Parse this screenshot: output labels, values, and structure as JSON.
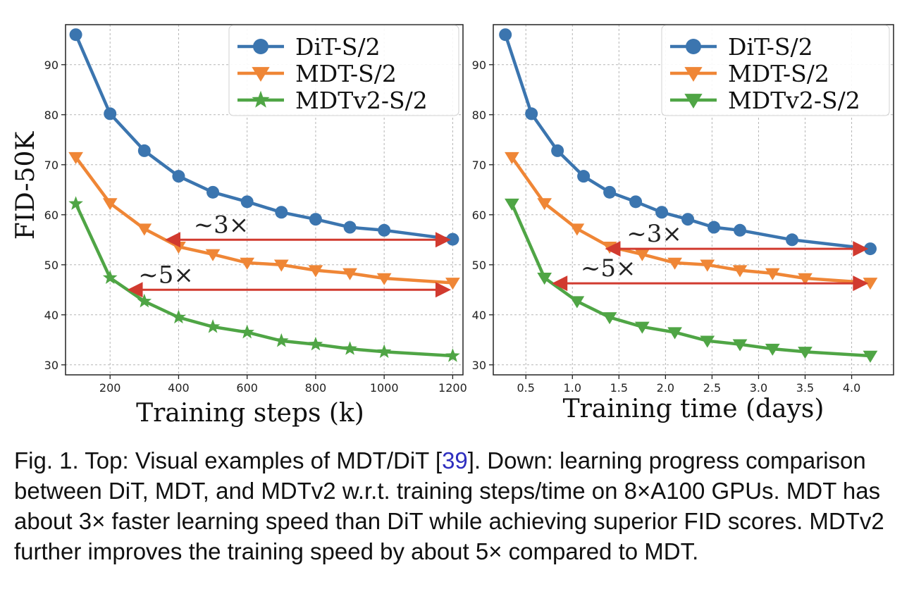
{
  "chart_data": [
    {
      "type": "line",
      "xlabel": "Training steps (k)",
      "ylabel": "FID-50K",
      "xlim": [
        70,
        1230
      ],
      "ylim": [
        28,
        98
      ],
      "xticks": [
        200,
        400,
        600,
        800,
        1000,
        1200
      ],
      "yticks": [
        30,
        40,
        50,
        60,
        70,
        80,
        90
      ],
      "grid": true,
      "legend": "top-right",
      "series": [
        {
          "name": "DiT-S/2",
          "color": "#3b75af",
          "marker": "circle",
          "x": [
            100,
            200,
            300,
            400,
            500,
            600,
            700,
            800,
            900,
            1000,
            1200
          ],
          "y": [
            96,
            80.2,
            72.8,
            67.7,
            64.5,
            62.6,
            60.5,
            59.1,
            57.5,
            56.9,
            55.1
          ]
        },
        {
          "name": "MDT-S/2",
          "color": "#ef8636",
          "marker": "triangle-down",
          "x": [
            100,
            200,
            300,
            400,
            500,
            600,
            700,
            800,
            900,
            1000,
            1200
          ],
          "y": [
            71.5,
            62.3,
            57.2,
            53.6,
            52.1,
            50.4,
            50.0,
            48.9,
            48.3,
            47.3,
            46.4
          ]
        },
        {
          "name": "MDTv2-S/2",
          "color": "#4fa545",
          "marker": "star",
          "x": [
            100,
            200,
            300,
            400,
            500,
            600,
            700,
            800,
            900,
            1000,
            1200
          ],
          "y": [
            62.2,
            47.4,
            42.7,
            39.5,
            37.6,
            36.5,
            34.8,
            34.1,
            33.2,
            32.6,
            31.8
          ]
        }
      ],
      "annotations": [
        {
          "text": "~3×",
          "from": [
            1195,
            55
          ],
          "to": [
            360,
            55
          ]
        },
        {
          "text": "~5×",
          "from": [
            1195,
            45
          ],
          "to": [
            250,
            45
          ]
        }
      ]
    },
    {
      "type": "line",
      "xlabel": "Training time (days)",
      "ylabel": "",
      "xlim": [
        0.15,
        4.45
      ],
      "ylim": [
        28,
        98
      ],
      "xticks": [
        0.5,
        1.0,
        1.5,
        2.0,
        2.5,
        3.0,
        3.5,
        4.0
      ],
      "xticklabels": [
        "0.5",
        "1.0",
        "1.5",
        "2.0",
        "2.5",
        "3.0",
        "3.5",
        "4.0"
      ],
      "yticks": [
        30,
        40,
        50,
        60,
        70,
        80,
        90
      ],
      "grid": true,
      "legend": "top-right",
      "series": [
        {
          "name": "DiT-S/2",
          "color": "#3b75af",
          "marker": "circle",
          "x": [
            0.28,
            0.56,
            0.84,
            1.12,
            1.4,
            1.68,
            1.96,
            2.24,
            2.52,
            2.8,
            3.36,
            4.2
          ],
          "y": [
            96,
            80.2,
            72.8,
            67.7,
            64.5,
            62.6,
            60.5,
            59.1,
            57.5,
            56.9,
            55.0,
            53.2
          ]
        },
        {
          "name": "MDT-S/2",
          "color": "#ef8636",
          "marker": "triangle-down",
          "x": [
            0.35,
            0.7,
            1.05,
            1.4,
            1.75,
            2.1,
            2.45,
            2.8,
            3.15,
            3.5,
            4.2
          ],
          "y": [
            71.5,
            62.3,
            57.2,
            53.6,
            52.1,
            50.4,
            50.0,
            48.9,
            48.3,
            47.3,
            46.4
          ]
        },
        {
          "name": "MDTv2-S/2",
          "color": "#4fa545",
          "marker": "triangle-down",
          "x": [
            0.35,
            0.7,
            1.05,
            1.4,
            1.75,
            2.1,
            2.45,
            2.8,
            3.15,
            3.5,
            4.2
          ],
          "y": [
            62.2,
            47.4,
            42.7,
            39.5,
            37.6,
            36.5,
            34.8,
            34.1,
            33.2,
            32.6,
            31.8
          ]
        }
      ],
      "annotations": [
        {
          "text": "~3×",
          "from": [
            4.18,
            53.2
          ],
          "to": [
            1.35,
            53.2
          ]
        },
        {
          "text": "~5×",
          "from": [
            4.18,
            46.3
          ],
          "to": [
            0.78,
            46.3
          ]
        }
      ]
    }
  ],
  "caption": {
    "prefix": "Fig. 1. Top: Visual examples of MDT/DiT [",
    "ref": "39",
    "suffix": "]. Down: learning progress comparison between DiT, MDT, and MDTv2 w.r.t. training steps/time on 8×A100 GPUs. MDT has about 3× faster learning speed than DiT while achieving superior FID scores. MDTv2 further improves the training speed by about 5× compared to MDT."
  },
  "colors": {
    "arrow": "#d13a2f",
    "grid": "#b5b5b5"
  }
}
